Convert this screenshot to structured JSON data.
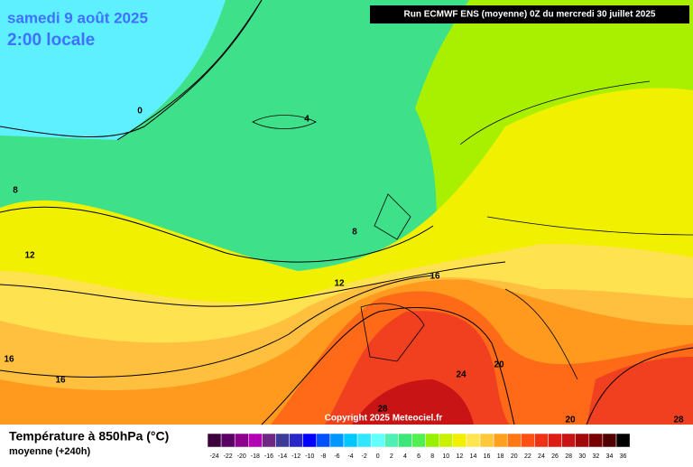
{
  "header": {
    "date": "samedi 9 août 2025",
    "time": "2:00 locale",
    "run": "Run ECMWF ENS (moyenne) 0Z du mercredi 30 juillet 2025"
  },
  "footer": {
    "title": "Température à 850hPa (°C)",
    "subtitle": "moyenne   (+240h)",
    "copyright": "Copyright 2025 Meteociel.fr"
  },
  "legend": {
    "values": [
      -24,
      -22,
      -20,
      -18,
      -16,
      -14,
      -12,
      -10,
      -8,
      -6,
      -4,
      -2,
      0,
      2,
      4,
      6,
      8,
      10,
      12,
      14,
      16,
      18,
      20,
      22,
      24,
      26,
      28,
      30,
      32,
      34,
      36
    ],
    "colors": [
      "#3c003c",
      "#5a0064",
      "#8c008c",
      "#b400b4",
      "#6e2882",
      "#3c3c96",
      "#2828c8",
      "#0000ff",
      "#0050ff",
      "#0096ff",
      "#00c8ff",
      "#32e6ff",
      "#64ffff",
      "#50f0b4",
      "#3ce678",
      "#50f050",
      "#96f000",
      "#c8f000",
      "#f0f000",
      "#ffe650",
      "#ffc83c",
      "#ffa01e",
      "#ff7814",
      "#ff5014",
      "#f03214",
      "#dc1e14",
      "#c81414",
      "#a00a0a",
      "#780000",
      "#500000",
      "#000000"
    ]
  },
  "contours": [
    "0",
    "4",
    "8",
    "8",
    "12",
    "12",
    "16",
    "16",
    "16",
    "20",
    "20",
    "24",
    "28",
    "28"
  ]
}
